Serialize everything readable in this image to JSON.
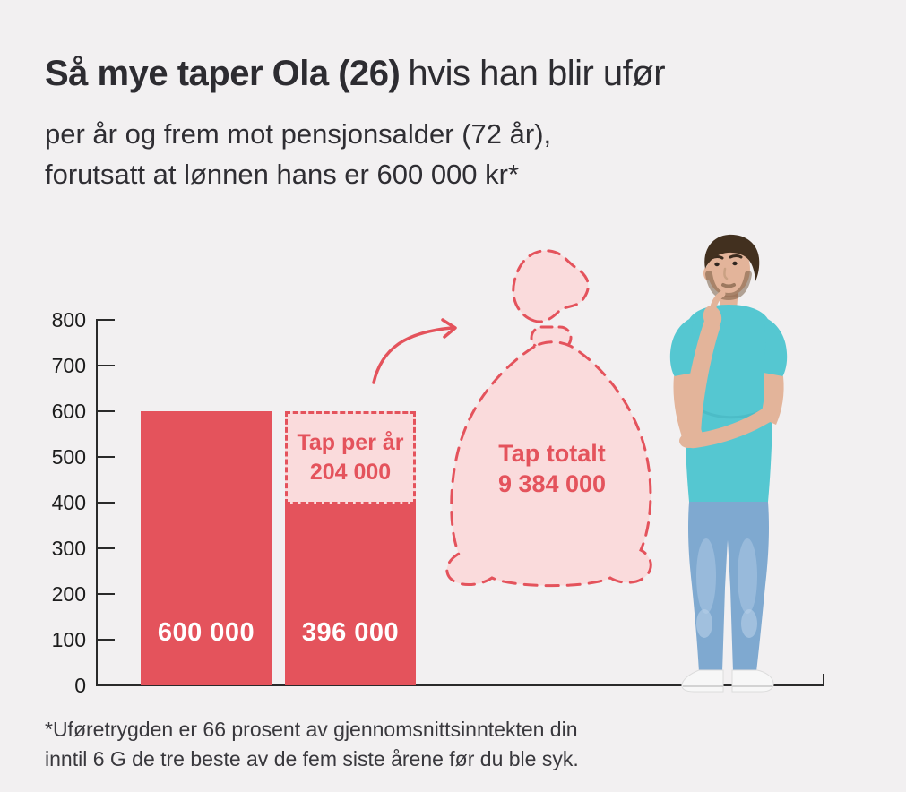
{
  "header": {
    "title_bold": "Så mye taper Ola (26)",
    "title_regular": "hvis han blir ufør",
    "subtitle_line1": "per år og frem mot pensjonsalder (72 år),",
    "subtitle_line2": "forutsatt at lønnen hans er 600 000 kr*"
  },
  "footer": {
    "footnote_line1": "*Uføretrygden er 66 prosent av gjennomsnittsinntekten din",
    "footnote_line2": "inntil 6 G de tre beste av de fem siste årene før du ble syk."
  },
  "colors": {
    "background": "#f2f0f1",
    "accent_red": "#e4535c",
    "accent_pink": "#fadbdc",
    "text_dark": "#2d2c31",
    "axis": "#2a2a2a",
    "bar_value_text": "#ffffff",
    "shirt_teal": "#55c7d1",
    "jeans_blue": "#7fa9d0"
  },
  "chart_data": {
    "type": "bar",
    "title": "Så mye taper Ola (26) hvis han blir ufør",
    "subtitle": "per år og frem mot pensjonsalder (72 år), forutsatt at lønnen hans er 600 000 kr*",
    "ylabel": "",
    "xlabel": "",
    "ylim": [
      0,
      800
    ],
    "yticks": [
      0,
      100,
      200,
      300,
      400,
      500,
      600,
      700,
      800
    ],
    "grid": false,
    "legend_position": "none",
    "bars": [
      {
        "value": 600,
        "label": "600 000"
      },
      {
        "value": 396,
        "label": "396 000",
        "loss_overlay": {
          "value": 204,
          "line1": "Tap per år",
          "line2": "204 000"
        }
      }
    ],
    "annotation_bag": {
      "line1": "Tap totalt",
      "line2": "9 384 000"
    }
  }
}
